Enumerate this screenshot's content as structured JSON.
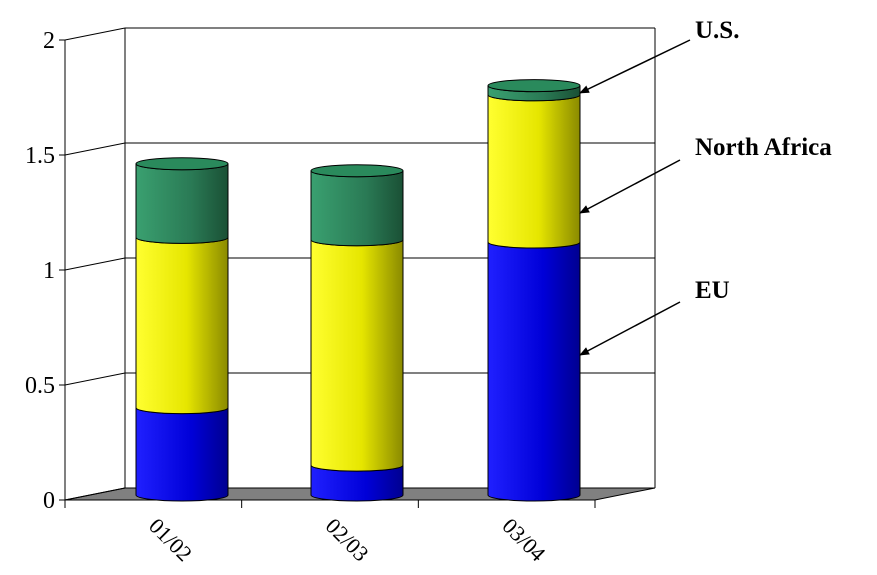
{
  "chart_data": {
    "type": "bar",
    "stacked": true,
    "style": "3d-cylinder",
    "categories": [
      "01/02",
      "02/03",
      "03/04"
    ],
    "series": [
      {
        "name": "EU",
        "values": [
          0.38,
          0.13,
          1.1
        ],
        "color": "#1010e0"
      },
      {
        "name": "North Africa",
        "values": [
          0.74,
          0.98,
          0.64
        ],
        "color": "#e8e800"
      },
      {
        "name": "U.S.",
        "values": [
          0.32,
          0.3,
          0.04
        ],
        "color": "#2a8a5c"
      }
    ],
    "y_ticks": [
      "0",
      "0.5",
      "1",
      "1.5",
      "2"
    ],
    "ylim": [
      0,
      2
    ],
    "grid": true,
    "legend": "right, arrows pointing to segments",
    "floor_color": "#808080"
  }
}
